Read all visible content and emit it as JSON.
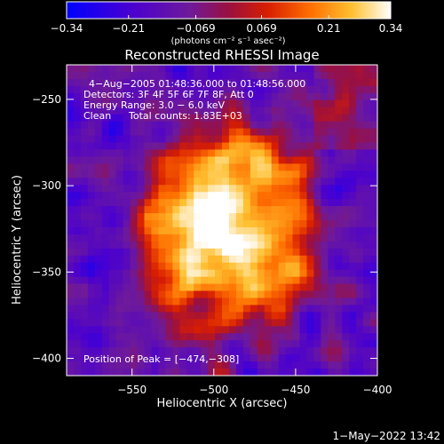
{
  "chart_data": {
    "type": "heatmap",
    "title": "Reconstructed RHESSI Image",
    "xlabel": "Heliocentric X (arcsec)",
    "ylabel": "Heliocentric Y (arcsec)",
    "xlim": [
      -590,
      -400
    ],
    "ylim": [
      -410,
      -230
    ],
    "x_ticks": [
      -550,
      -500,
      -450,
      -400
    ],
    "x_tick_labels": [
      "−550",
      "−500",
      "−450",
      "−400"
    ],
    "y_ticks": [
      -400,
      -350,
      -300,
      -250
    ],
    "y_tick_labels": [
      "−400",
      "−350",
      "−300",
      "−250"
    ],
    "colorbar": {
      "range": [
        -0.34,
        0.34
      ],
      "ticks": [
        -0.34,
        -0.21,
        -0.069,
        0.069,
        0.21,
        0.34
      ],
      "tick_labels": [
        "−0.34",
        "−0.21",
        "−0.069",
        "0.069",
        "0.21",
        "0.34"
      ],
      "unit_label": "(photons cm⁻² s⁻¹ asec⁻²)",
      "colors": [
        "#0000ff",
        "#5a00c8",
        "#7d1e8c",
        "#b4001e",
        "#ff3c00",
        "#ff8c00",
        "#ffd23c",
        "#ffffff"
      ]
    },
    "annotations": {
      "time_range": "4−Aug−2005 01:48:36.000 to 01:48:56.000",
      "detectors": "Detectors: 3F 4F 5F 6F 7F 8F, Att 0",
      "energy_range": "Energy Range: 3.0 − 6.0 keV",
      "algorithm": "Clean",
      "total_counts": "Total counts: 1.83E+03",
      "peak": "Position of Peak = [−474,−308]"
    },
    "peak_position": [
      -474,
      -308
    ],
    "source_center": [
      -492,
      -325
    ],
    "grid": false
  },
  "footer": {
    "timestamp": "1−May−2022 13:42"
  }
}
